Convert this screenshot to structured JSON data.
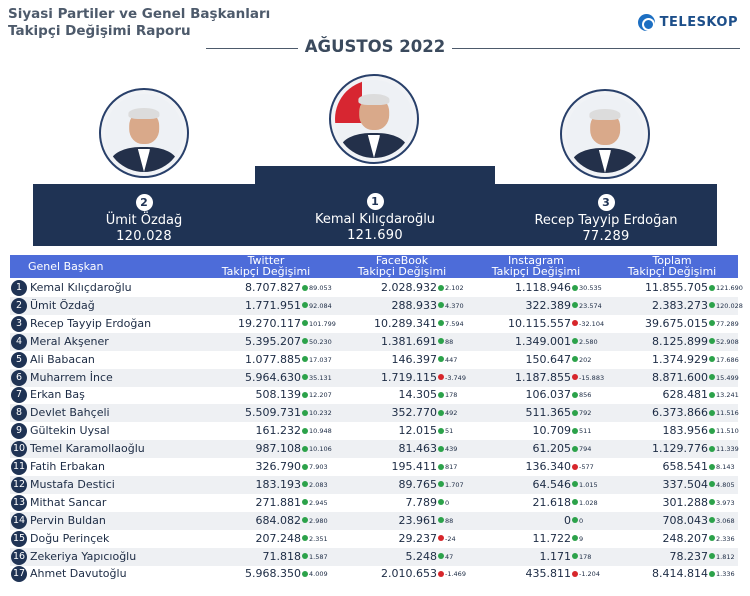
{
  "header": {
    "title_line1": "Siyasi Partiler ve Genel Başkanları",
    "title_line2": "Takipçi Değişimi Raporu",
    "month": "AĞUSTOS 2022",
    "brand": "TELESKOP"
  },
  "colors": {
    "navy": "#1f3354",
    "header_blue": "#4d6cd9",
    "positive": "#2ca24a",
    "negative": "#d7262b"
  },
  "podium": [
    {
      "rank": "2",
      "name": "Ümit Özdağ",
      "value": "120.028"
    },
    {
      "rank": "1",
      "name": "Kemal Kılıçdaroğlu",
      "value": "121.690"
    },
    {
      "rank": "3",
      "name": "Recep Tayyip Erdoğan",
      "value": "77.289"
    }
  ],
  "table": {
    "columns": {
      "leader": "Genel Başkan",
      "twitter_l1": "Twitter",
      "twitter_l2": "Takipçi Değişimi",
      "facebook_l1": "FaceBook",
      "facebook_l2": "Takipçi Değişimi",
      "instagram_l1": "Instagram",
      "instagram_l2": "Takipçi Değişimi",
      "total_l1": "Toplam",
      "total_l2": "Takipçi Değişimi"
    },
    "rows": [
      {
        "n": "1",
        "name": "Kemal Kılıçdaroğlu",
        "tw": "8.707.827",
        "twc": "89.053",
        "tws": "up",
        "fb": "2.028.932",
        "fbc": "2.102",
        "fbs": "up",
        "ig": "1.118.946",
        "igc": "30.535",
        "igs": "up",
        "tt": "11.855.705",
        "ttc": "121.690",
        "tts": "up"
      },
      {
        "n": "2",
        "name": "Ümit Özdağ",
        "tw": "1.771.951",
        "twc": "92.084",
        "tws": "up",
        "fb": "288.933",
        "fbc": "4.370",
        "fbs": "up",
        "ig": "322.389",
        "igc": "23.574",
        "igs": "up",
        "tt": "2.383.273",
        "ttc": "120.028",
        "tts": "up"
      },
      {
        "n": "3",
        "name": "Recep Tayyip Erdoğan",
        "tw": "19.270.117",
        "twc": "101.799",
        "tws": "up",
        "fb": "10.289.341",
        "fbc": "7.594",
        "fbs": "up",
        "ig": "10.115.557",
        "igc": "-32.104",
        "igs": "down",
        "tt": "39.675.015",
        "ttc": "77.289",
        "tts": "up"
      },
      {
        "n": "4",
        "name": "Meral Akşener",
        "tw": "5.395.207",
        "twc": "50.230",
        "tws": "up",
        "fb": "1.381.691",
        "fbc": "88",
        "fbs": "up",
        "ig": "1.349.001",
        "igc": "2.580",
        "igs": "up",
        "tt": "8.125.899",
        "ttc": "52.908",
        "tts": "up"
      },
      {
        "n": "5",
        "name": "Ali Babacan",
        "tw": "1.077.885",
        "twc": "17.037",
        "tws": "up",
        "fb": "146.397",
        "fbc": "447",
        "fbs": "up",
        "ig": "150.647",
        "igc": "202",
        "igs": "up",
        "tt": "1.374.929",
        "ttc": "17.686",
        "tts": "up"
      },
      {
        "n": "6",
        "name": "Muharrem İnce",
        "tw": "5.964.630",
        "twc": "35.131",
        "tws": "up",
        "fb": "1.719.115",
        "fbc": "-3.749",
        "fbs": "down",
        "ig": "1.187.855",
        "igc": "-15.883",
        "igs": "down",
        "tt": "8.871.600",
        "ttc": "15.499",
        "tts": "up"
      },
      {
        "n": "7",
        "name": "Erkan Baş",
        "tw": "508.139",
        "twc": "12.207",
        "tws": "up",
        "fb": "14.305",
        "fbc": "178",
        "fbs": "up",
        "ig": "106.037",
        "igc": "856",
        "igs": "up",
        "tt": "628.481",
        "ttc": "13.241",
        "tts": "up"
      },
      {
        "n": "8",
        "name": "Devlet Bahçeli",
        "tw": "5.509.731",
        "twc": "10.232",
        "tws": "up",
        "fb": "352.770",
        "fbc": "492",
        "fbs": "up",
        "ig": "511.365",
        "igc": "792",
        "igs": "up",
        "tt": "6.373.866",
        "ttc": "11.516",
        "tts": "up"
      },
      {
        "n": "9",
        "name": "Gültekin Uysal",
        "tw": "161.232",
        "twc": "10.948",
        "tws": "up",
        "fb": "12.015",
        "fbc": "51",
        "fbs": "up",
        "ig": "10.709",
        "igc": "511",
        "igs": "up",
        "tt": "183.956",
        "ttc": "11.510",
        "tts": "up"
      },
      {
        "n": "10",
        "name": "Temel Karamollaoğlu",
        "tw": "987.108",
        "twc": "10.106",
        "tws": "up",
        "fb": "81.463",
        "fbc": "439",
        "fbs": "up",
        "ig": "61.205",
        "igc": "794",
        "igs": "up",
        "tt": "1.129.776",
        "ttc": "11.339",
        "tts": "up"
      },
      {
        "n": "11",
        "name": "Fatih Erbakan",
        "tw": "326.790",
        "twc": "7.903",
        "tws": "up",
        "fb": "195.411",
        "fbc": "817",
        "fbs": "up",
        "ig": "136.340",
        "igc": "-577",
        "igs": "down",
        "tt": "658.541",
        "ttc": "8.143",
        "tts": "up"
      },
      {
        "n": "12",
        "name": "Mustafa Destici",
        "tw": "183.193",
        "twc": "2.083",
        "tws": "up",
        "fb": "89.765",
        "fbc": "1.707",
        "fbs": "up",
        "ig": "64.546",
        "igc": "1.015",
        "igs": "up",
        "tt": "337.504",
        "ttc": "4.805",
        "tts": "up"
      },
      {
        "n": "13",
        "name": "Mithat Sancar",
        "tw": "271.881",
        "twc": "2.945",
        "tws": "up",
        "fb": "7.789",
        "fbc": "0",
        "fbs": "up",
        "ig": "21.618",
        "igc": "1.028",
        "igs": "up",
        "tt": "301.288",
        "ttc": "3.973",
        "tts": "up"
      },
      {
        "n": "14",
        "name": "Pervin Buldan",
        "tw": "684.082",
        "twc": "2.980",
        "tws": "up",
        "fb": "23.961",
        "fbc": "88",
        "fbs": "up",
        "ig": "0",
        "igc": "0",
        "igs": "up",
        "tt": "708.043",
        "ttc": "3.068",
        "tts": "up"
      },
      {
        "n": "15",
        "name": "Doğu Perinçek",
        "tw": "207.248",
        "twc": "2.351",
        "tws": "up",
        "fb": "29.237",
        "fbc": "-24",
        "fbs": "down",
        "ig": "11.722",
        "igc": "9",
        "igs": "up",
        "tt": "248.207",
        "ttc": "2.336",
        "tts": "up"
      },
      {
        "n": "16",
        "name": "Zekeriya Yapıcıoğlu",
        "tw": "71.818",
        "twc": "1.587",
        "tws": "up",
        "fb": "5.248",
        "fbc": "47",
        "fbs": "up",
        "ig": "1.171",
        "igc": "178",
        "igs": "up",
        "tt": "78.237",
        "ttc": "1.812",
        "tts": "up"
      },
      {
        "n": "17",
        "name": "Ahmet Davutoğlu",
        "tw": "5.968.350",
        "twc": "4.009",
        "tws": "up",
        "fb": "2.010.653",
        "fbc": "-1.469",
        "fbs": "down",
        "ig": "435.811",
        "igc": "-1.204",
        "igs": "down",
        "tt": "8.414.814",
        "ttc": "1.336",
        "tts": "up"
      }
    ]
  }
}
